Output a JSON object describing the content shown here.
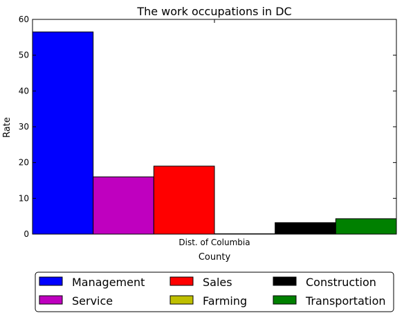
{
  "chart_data": {
    "type": "bar",
    "title": "The work occupations in DC",
    "xlabel": "County",
    "ylabel": "Rate",
    "categories": [
      "Dist. of Columbia"
    ],
    "ylim": [
      0,
      60
    ],
    "yticks": [
      0,
      10,
      20,
      30,
      40,
      50,
      60
    ],
    "grid": false,
    "legend_position": "bottom",
    "series": [
      {
        "name": "Management",
        "color": "#0000ff",
        "values": [
          56.5
        ]
      },
      {
        "name": "Service",
        "color": "#bf00bf",
        "values": [
          16.0
        ]
      },
      {
        "name": "Sales",
        "color": "#ff0000",
        "values": [
          19.0
        ]
      },
      {
        "name": "Farming",
        "color": "#bfbf00",
        "values": [
          0.1
        ]
      },
      {
        "name": "Construction",
        "color": "#000000",
        "values": [
          3.2
        ]
      },
      {
        "name": "Transportation",
        "color": "#008000",
        "values": [
          4.3
        ]
      }
    ]
  }
}
